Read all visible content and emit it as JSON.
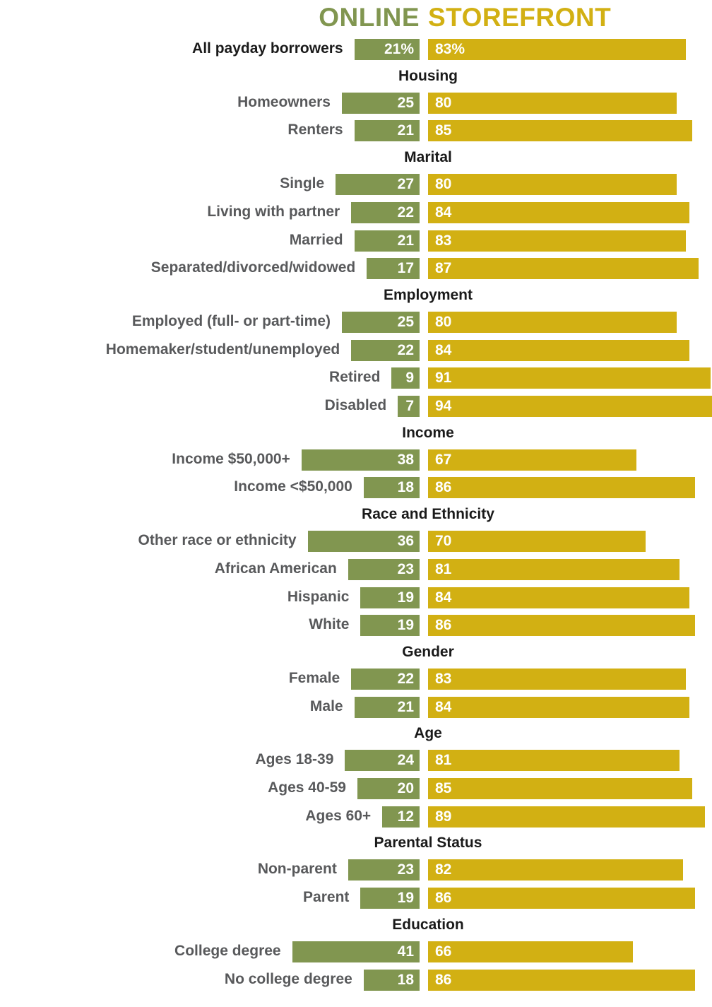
{
  "colors": {
    "online": "#819650",
    "storefront": "#d2b013",
    "label": "#58595b",
    "heading": "#1a1a1a"
  },
  "chart_data": {
    "type": "bar",
    "orientation": "horizontal-diverging",
    "series": [
      {
        "name": "ONLINE",
        "color": "#819650"
      },
      {
        "name": "STOREFRONT",
        "color": "#d2b013"
      }
    ],
    "rows": [
      {
        "kind": "total",
        "label": "All payday borrowers",
        "online": 21,
        "storefront": 83,
        "online_text": "21%",
        "storefront_text": "83%"
      },
      {
        "kind": "group",
        "label": "Housing"
      },
      {
        "kind": "row",
        "label": "Homeowners",
        "online": 25,
        "storefront": 80
      },
      {
        "kind": "row",
        "label": "Renters",
        "online": 21,
        "storefront": 85
      },
      {
        "kind": "group",
        "label": "Marital"
      },
      {
        "kind": "row",
        "label": "Single",
        "online": 27,
        "storefront": 80
      },
      {
        "kind": "row",
        "label": "Living with partner",
        "online": 22,
        "storefront": 84
      },
      {
        "kind": "row",
        "label": "Married",
        "online": 21,
        "storefront": 83
      },
      {
        "kind": "row",
        "label": "Separated/divorced/widowed",
        "online": 17,
        "storefront": 87
      },
      {
        "kind": "group",
        "label": "Employment"
      },
      {
        "kind": "row",
        "label": "Employed (full- or part-time)",
        "online": 25,
        "storefront": 80
      },
      {
        "kind": "row",
        "label": "Homemaker/student/unemployed",
        "online": 22,
        "storefront": 84
      },
      {
        "kind": "row",
        "label": "Retired",
        "online": 9,
        "storefront": 91
      },
      {
        "kind": "row",
        "label": "Disabled",
        "online": 7,
        "storefront": 94
      },
      {
        "kind": "group",
        "label": "Income"
      },
      {
        "kind": "row",
        "label": "Income $50,000+",
        "online": 38,
        "storefront": 67
      },
      {
        "kind": "row",
        "label": "Income <$50,000",
        "online": 18,
        "storefront": 86
      },
      {
        "kind": "group",
        "label": "Race and Ethnicity"
      },
      {
        "kind": "row",
        "label": "Other race or ethnicity",
        "online": 36,
        "storefront": 70
      },
      {
        "kind": "row",
        "label": "African American",
        "online": 23,
        "storefront": 81
      },
      {
        "kind": "row",
        "label": "Hispanic",
        "online": 19,
        "storefront": 84
      },
      {
        "kind": "row",
        "label": "White",
        "online": 19,
        "storefront": 86
      },
      {
        "kind": "group",
        "label": "Gender"
      },
      {
        "kind": "row",
        "label": "Female",
        "online": 22,
        "storefront": 83
      },
      {
        "kind": "row",
        "label": "Male",
        "online": 21,
        "storefront": 84
      },
      {
        "kind": "group",
        "label": "Age"
      },
      {
        "kind": "row",
        "label": "Ages 18-39",
        "online": 24,
        "storefront": 81
      },
      {
        "kind": "row",
        "label": "Ages 40-59",
        "online": 20,
        "storefront": 85
      },
      {
        "kind": "row",
        "label": "Ages 60+",
        "online": 12,
        "storefront": 89
      },
      {
        "kind": "group",
        "label": "Parental Status"
      },
      {
        "kind": "row",
        "label": "Non-parent",
        "online": 23,
        "storefront": 82
      },
      {
        "kind": "row",
        "label": "Parent",
        "online": 19,
        "storefront": 86
      },
      {
        "kind": "group",
        "label": "Education"
      },
      {
        "kind": "row",
        "label": "College degree",
        "online": 41,
        "storefront": 66
      },
      {
        "kind": "row",
        "label": "No college degree",
        "online": 18,
        "storefront": 86
      }
    ]
  }
}
